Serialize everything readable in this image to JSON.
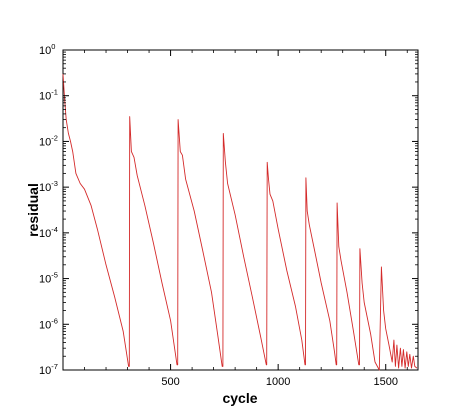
{
  "chart_data": {
    "type": "line",
    "title": "",
    "xlabel": "cycle",
    "ylabel": "residual",
    "x_scale": "linear",
    "y_scale": "log",
    "xlim": [
      0,
      1650
    ],
    "ylim": [
      1e-07,
      1
    ],
    "grid": false,
    "legend": "none",
    "line_color": "#d42a2a",
    "x_ticks": [
      500,
      1000,
      1500
    ],
    "y_ticks": [
      {
        "value": 1,
        "base": "10",
        "exp": "0"
      },
      {
        "value": 0.1,
        "base": "10",
        "exp": "-1"
      },
      {
        "value": 0.01,
        "base": "10",
        "exp": "-2"
      },
      {
        "value": 0.001,
        "base": "10",
        "exp": "-3"
      },
      {
        "value": 0.0001,
        "base": "10",
        "exp": "-4"
      },
      {
        "value": 1e-05,
        "base": "10",
        "exp": "-5"
      },
      {
        "value": 1e-06,
        "base": "10",
        "exp": "-6"
      },
      {
        "value": 1e-07,
        "base": "10",
        "exp": "-7"
      }
    ],
    "series": [
      {
        "points": [
          [
            0,
            0.3
          ],
          [
            8,
            0.08
          ],
          [
            15,
            0.03
          ],
          [
            25,
            0.015
          ],
          [
            35,
            0.01
          ],
          [
            45,
            0.006
          ],
          [
            60,
            0.002
          ],
          [
            80,
            0.0012
          ],
          [
            100,
            0.0009
          ],
          [
            130,
            0.0004
          ],
          [
            160,
            0.00012
          ],
          [
            200,
            2e-05
          ],
          [
            240,
            4e-06
          ],
          [
            280,
            7e-07
          ],
          [
            305,
            1.2e-07
          ],
          [
            308,
            1.2e-07
          ],
          [
            310,
            0.035
          ],
          [
            318,
            0.006
          ],
          [
            330,
            0.0045
          ],
          [
            345,
            0.0018
          ],
          [
            380,
            0.0004
          ],
          [
            420,
            6e-05
          ],
          [
            460,
            8e-06
          ],
          [
            500,
            1.2e-06
          ],
          [
            530,
            1.3e-07
          ],
          [
            533,
            1.3e-07
          ],
          [
            535,
            0.03
          ],
          [
            545,
            0.006
          ],
          [
            555,
            0.005
          ],
          [
            570,
            0.0015
          ],
          [
            610,
            0.0003
          ],
          [
            650,
            4e-05
          ],
          [
            690,
            5e-06
          ],
          [
            720,
            5.5e-07
          ],
          [
            740,
            1.2e-07
          ],
          [
            743,
            1.2e-07
          ],
          [
            745,
            0.015
          ],
          [
            755,
            0.0035
          ],
          [
            765,
            0.0012
          ],
          [
            800,
            0.00025
          ],
          [
            840,
            3e-05
          ],
          [
            880,
            4e-06
          ],
          [
            920,
            5e-07
          ],
          [
            945,
            1.3e-07
          ],
          [
            947,
            1.3e-07
          ],
          [
            949,
            0.0035
          ],
          [
            955,
            0.0015
          ],
          [
            962,
            0.0007
          ],
          [
            975,
            0.0005
          ],
          [
            1000,
            0.00012
          ],
          [
            1040,
            1.5e-05
          ],
          [
            1080,
            2.5e-06
          ],
          [
            1110,
            4.5e-07
          ],
          [
            1125,
            1.3e-07
          ],
          [
            1127,
            1.3e-07
          ],
          [
            1129,
            0.0016
          ],
          [
            1135,
            0.0003
          ],
          [
            1145,
            0.00015
          ],
          [
            1170,
            4e-05
          ],
          [
            1200,
            8e-06
          ],
          [
            1240,
            1.2e-06
          ],
          [
            1262,
            2.5e-07
          ],
          [
            1270,
            1.3e-07
          ],
          [
            1272,
            1.3e-07
          ],
          [
            1274,
            0.00045
          ],
          [
            1282,
            5e-05
          ],
          [
            1292,
            2.5e-05
          ],
          [
            1320,
            5e-06
          ],
          [
            1350,
            7e-07
          ],
          [
            1375,
            1.3e-07
          ],
          [
            1378,
            1.3e-07
          ],
          [
            1380,
            4.5e-05
          ],
          [
            1390,
            8e-06
          ],
          [
            1400,
            3e-06
          ],
          [
            1430,
            6e-07
          ],
          [
            1450,
            1.5e-07
          ],
          [
            1470,
            1e-07
          ],
          [
            1480,
            1.8e-05
          ],
          [
            1490,
            2e-06
          ],
          [
            1500,
            8e-07
          ],
          [
            1515,
            3.5e-07
          ],
          [
            1530,
            1.5e-07
          ],
          [
            1538,
            4.5e-07
          ],
          [
            1545,
            1.2e-07
          ],
          [
            1552,
            3.5e-07
          ],
          [
            1560,
            1.1e-07
          ],
          [
            1568,
            3e-07
          ],
          [
            1575,
            1.2e-07
          ],
          [
            1582,
            2.8e-07
          ],
          [
            1590,
            1.1e-07
          ],
          [
            1598,
            2.5e-07
          ],
          [
            1605,
            1.2e-07
          ],
          [
            1612,
            2.2e-07
          ],
          [
            1620,
            1.1e-07
          ],
          [
            1628,
            2e-07
          ],
          [
            1635,
            1.2e-07
          ],
          [
            1645,
            1.1e-07
          ]
        ]
      }
    ]
  }
}
